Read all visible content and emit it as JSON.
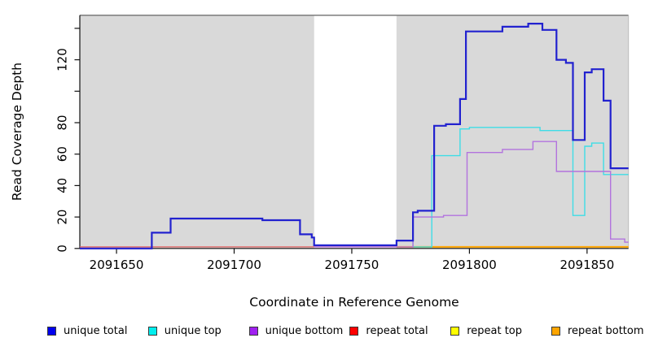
{
  "chart_data": {
    "type": "line",
    "step": true,
    "title": "",
    "xlabel": "Coordinate in Reference Genome",
    "ylabel": "Read Coverage Depth",
    "xlim": [
      2091634.4,
      2091867.6
    ],
    "ylim": [
      0,
      148.3
    ],
    "x_ticks": [
      2091650,
      2091700,
      2091750,
      2091800,
      2091850
    ],
    "y_ticks": [
      {
        "v": 0,
        "label": "0"
      },
      {
        "v": 20,
        "label": "20"
      },
      {
        "v": 40,
        "label": "40"
      },
      {
        "v": 60,
        "label": "60"
      },
      {
        "v": 80,
        "label": "80"
      },
      {
        "v": 100,
        "label": ""
      },
      {
        "v": 120,
        "label": "120"
      },
      {
        "v": 140,
        "label": ""
      }
    ],
    "colors": {
      "plot_bg": "#d9d9d9",
      "masked_band": "#ffffff",
      "axis": "#111111",
      "frame_top": "#555555",
      "frame_right": "#bbbbbb"
    },
    "masked_region": {
      "from": 2091734,
      "to": 2091769
    },
    "series": [
      {
        "name": "unique total",
        "color": "#2222cf",
        "width": 2.2,
        "z": 6,
        "points": [
          [
            2091634.4,
            0
          ],
          [
            2091665,
            10
          ],
          [
            2091673,
            19
          ],
          [
            2091712,
            18
          ],
          [
            2091728,
            9
          ],
          [
            2091733,
            7
          ],
          [
            2091734,
            2
          ],
          [
            2091769,
            5
          ],
          [
            2091776,
            23
          ],
          [
            2091778,
            24
          ],
          [
            2091785,
            78
          ],
          [
            2091790,
            79
          ],
          [
            2091796,
            95
          ],
          [
            2091798.5,
            138
          ],
          [
            2091814,
            141
          ],
          [
            2091825,
            143
          ],
          [
            2091831,
            139
          ],
          [
            2091837,
            120
          ],
          [
            2091841,
            118
          ],
          [
            2091844,
            69
          ],
          [
            2091849,
            112
          ],
          [
            2091852,
            114
          ],
          [
            2091857,
            94
          ],
          [
            2091860,
            51
          ]
        ]
      },
      {
        "name": "unique top",
        "color": "#3edde6",
        "width": 1.4,
        "z": 4,
        "points": [
          [
            2091634.4,
            0
          ],
          [
            2091665,
            10
          ],
          [
            2091673,
            19
          ],
          [
            2091712,
            18
          ],
          [
            2091728,
            9
          ],
          [
            2091733,
            7
          ],
          [
            2091734,
            2
          ],
          [
            2091769,
            5
          ],
          [
            2091776,
            1
          ],
          [
            2091784,
            59
          ],
          [
            2091796,
            76
          ],
          [
            2091800,
            77
          ],
          [
            2091830,
            75
          ],
          [
            2091844,
            21
          ],
          [
            2091849,
            65
          ],
          [
            2091852,
            67
          ],
          [
            2091857,
            47
          ]
        ]
      },
      {
        "name": "unique bottom",
        "color": "#b273de",
        "width": 1.4,
        "z": 5,
        "points": [
          [
            2091734,
            1
          ],
          [
            2091776,
            20
          ],
          [
            2091789,
            21
          ],
          [
            2091799,
            61
          ],
          [
            2091814,
            63
          ],
          [
            2091827,
            68
          ],
          [
            2091837,
            49
          ],
          [
            2091860,
            6
          ],
          [
            2091866,
            4
          ]
        ]
      },
      {
        "name": "repeat total",
        "color": "#e06060",
        "width": 1.3,
        "z": 1,
        "end": 2091769,
        "points": [
          [
            2091634.4,
            1
          ]
        ]
      },
      {
        "name": "repeat top",
        "color": "#ffff00",
        "width": 1.3,
        "z": 2,
        "points": []
      },
      {
        "name": "repeat bottom",
        "color": "#ffa500",
        "width": 2,
        "z": 3,
        "points": [
          [
            2091769,
            1
          ]
        ]
      }
    ],
    "legend": {
      "position": "bottom",
      "items": [
        {
          "label": "unique total",
          "color": "#0000ee"
        },
        {
          "label": "unique top",
          "color": "#00eeee"
        },
        {
          "label": "unique bottom",
          "color": "#a020f0"
        },
        {
          "label": "repeat total",
          "color": "#ff0000"
        },
        {
          "label": "repeat top",
          "color": "#ffff00"
        },
        {
          "label": "repeat bottom",
          "color": "#ffa500"
        }
      ]
    }
  }
}
